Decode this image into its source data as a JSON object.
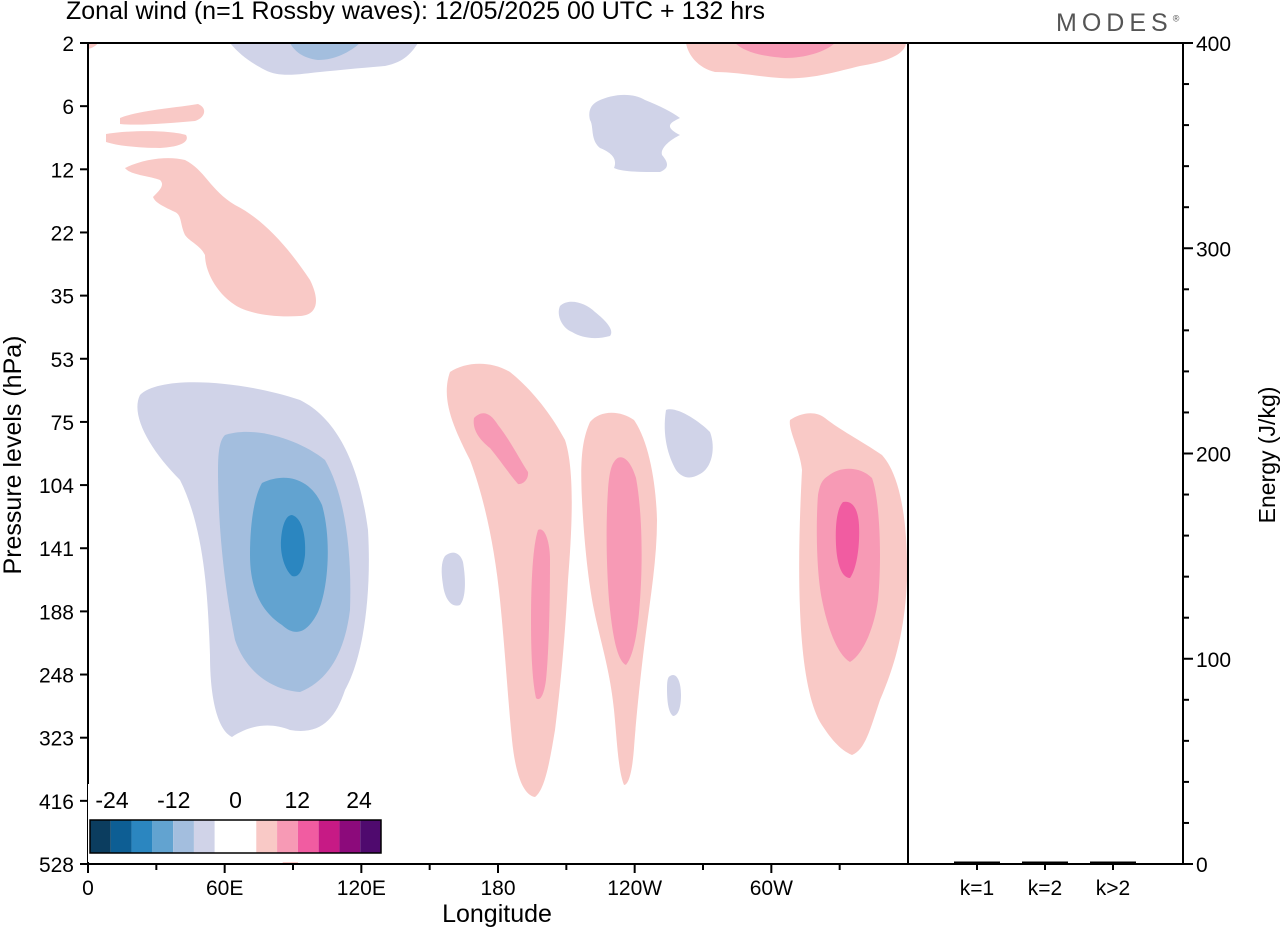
{
  "title": "Zonal wind (n=1 Rossby waves):  12/05/2025  00 UTC  + 132 hrs",
  "brand": "MODES",
  "brand_mark": "®",
  "chart_data": [
    {
      "type": "heatmap",
      "xlabel": "Longitude",
      "ylabel": "Pressure levels (hPa)",
      "x_ticks": [
        "0",
        "60E",
        "120E",
        "180",
        "120W",
        "60W"
      ],
      "y_ticks": [
        "2",
        "6",
        "12",
        "22",
        "35",
        "53",
        "75",
        "104",
        "141",
        "188",
        "248",
        "323",
        "416",
        "528"
      ],
      "y_scale": "log-pressure",
      "colorbar": {
        "labels": [
          "-24",
          "-12",
          "0",
          "12",
          "24"
        ],
        "colors": [
          "#0b3d5f",
          "#0d5e94",
          "#2b86c0",
          "#62a3d0",
          "#a3bede",
          "#d0d3e8",
          "#ffffff",
          "#ffffff",
          "#f9c9c6",
          "#f79ab5",
          "#f15ca1",
          "#c71a85",
          "#8c0a7b",
          "#4f0a6e"
        ]
      },
      "features": [
        {
          "sign": "negative",
          "center_lon": 90,
          "center_p": 141,
          "peak": -22
        },
        {
          "sign": "positive",
          "center_lon": 190,
          "center_p": 150,
          "peak": 12
        },
        {
          "sign": "positive",
          "center_lon": 245,
          "center_p": 141,
          "peak": 12
        },
        {
          "sign": "positive",
          "center_lon": 333,
          "center_p": 135,
          "peak": 18
        },
        {
          "sign": "positive",
          "center_lon": 75,
          "center_p": 20,
          "peak": 4
        },
        {
          "sign": "negative",
          "center_lon": 240,
          "center_p": 8,
          "peak": -4
        },
        {
          "sign": "negative",
          "center_lon": 275,
          "center_p": 90,
          "peak": -4
        }
      ]
    },
    {
      "type": "bar",
      "categories": [
        "k=1",
        "k=2",
        "k>2"
      ],
      "values": [
        0.5,
        0.5,
        0.5
      ],
      "ylabel": "Energy (J/kg)",
      "y_ticks": [
        "0",
        "100",
        "200",
        "300",
        "400"
      ],
      "ylim": [
        0,
        400
      ]
    }
  ]
}
